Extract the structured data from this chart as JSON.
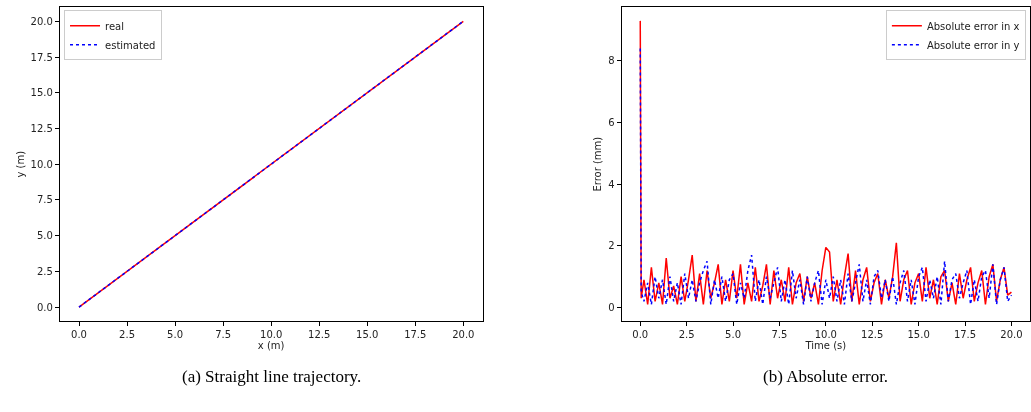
{
  "chart_data": [
    {
      "type": "line",
      "xlabel": "x (m)",
      "ylabel": "y (m)",
      "x": [
        0,
        20
      ],
      "legend": "top left",
      "xlim": [
        -1,
        21
      ],
      "ylim": [
        -1,
        21
      ],
      "xticks": [
        {
          "value": 0,
          "label": "0.0"
        },
        2.5,
        {
          "value": 5,
          "label": "5.0"
        },
        7.5,
        {
          "value": 10,
          "label": "10.0"
        },
        12.5,
        {
          "value": 15,
          "label": "15.0"
        },
        17.5,
        {
          "value": 20,
          "label": "20.0"
        }
      ],
      "yticks": [
        {
          "value": 0,
          "label": "0.0"
        },
        2.5,
        {
          "value": 5,
          "label": "5.0"
        },
        7.5,
        {
          "value": 10,
          "label": "10.0"
        },
        12.5,
        {
          "value": 15,
          "label": "15.0"
        },
        17.5,
        {
          "value": 20,
          "label": "20.0"
        }
      ],
      "series": [
        {
          "name": "real",
          "color": "#ff0000",
          "line_style": "solid",
          "values": [
            0,
            20
          ]
        },
        {
          "name": "estimated",
          "color": "#0000ff",
          "line_style": "dotted",
          "values": [
            0,
            20
          ]
        }
      ],
      "annotations": [
        "(a) Straight line trajectory."
      ]
    },
    {
      "type": "line",
      "xlabel": "Time (s)",
      "ylabel": "Error (mm)",
      "legend": "top right",
      "x": [
        0,
        0.05,
        0.2,
        0.4,
        0.6,
        0.8,
        1.0,
        1.2,
        1.4,
        1.6,
        1.8,
        2.0,
        2.2,
        2.4,
        2.6,
        2.8,
        3.0,
        3.2,
        3.4,
        3.6,
        3.8,
        4.0,
        4.2,
        4.4,
        4.6,
        4.8,
        5.0,
        5.2,
        5.4,
        5.6,
        5.8,
        6.0,
        6.2,
        6.4,
        6.6,
        6.8,
        7.0,
        7.2,
        7.4,
        7.6,
        7.8,
        8.0,
        8.2,
        8.4,
        8.6,
        8.8,
        9.0,
        9.2,
        9.4,
        9.6,
        9.8,
        10.0,
        10.2,
        10.4,
        10.6,
        10.8,
        11.0,
        11.2,
        11.4,
        11.6,
        11.8,
        12.0,
        12.2,
        12.4,
        12.6,
        12.8,
        13.0,
        13.2,
        13.4,
        13.6,
        13.8,
        14.0,
        14.2,
        14.4,
        14.6,
        14.8,
        15.0,
        15.2,
        15.4,
        15.6,
        15.8,
        16.0,
        16.2,
        16.4,
        16.6,
        16.8,
        17.0,
        17.2,
        17.4,
        17.6,
        17.8,
        18.0,
        18.2,
        18.4,
        18.6,
        18.8,
        19.0,
        19.2,
        19.4,
        19.6,
        19.8,
        20.0
      ],
      "xlim": [
        -1,
        21
      ],
      "ylim": [
        -0.45,
        9.75
      ],
      "xticks": [
        {
          "value": 0,
          "label": "0.0"
        },
        2.5,
        {
          "value": 5,
          "label": "5.0"
        },
        7.5,
        {
          "value": 10,
          "label": "10.0"
        },
        12.5,
        {
          "value": 15,
          "label": "15.0"
        },
        17.5,
        {
          "value": 20,
          "label": "20.0"
        }
      ],
      "yticks": [
        0,
        2,
        4,
        6,
        8
      ],
      "series": [
        {
          "name": "Absolute error in x",
          "color": "#ff0000",
          "line_style": "solid",
          "values": [
            9.3,
            0.3,
            0.9,
            0.1,
            1.3,
            0.2,
            0.8,
            0.1,
            1.6,
            0.3,
            0.7,
            0.1,
            1.0,
            0.2,
            0.9,
            1.7,
            0.2,
            1.1,
            0.1,
            1.2,
            0.3,
            0.8,
            1.4,
            0.1,
            0.9,
            0.2,
            1.2,
            0.3,
            1.4,
            0.1,
            0.8,
            0.2,
            1.3,
            0.2,
            0.7,
            1.4,
            0.1,
            1.2,
            0.3,
            0.9,
            0.2,
            1.3,
            0.1,
            0.8,
            1.1,
            0.2,
            1.0,
            0.3,
            0.8,
            0.1,
            1.2,
            1.95,
            1.8,
            0.2,
            0.9,
            0.1,
            1.0,
            1.75,
            0.2,
            1.2,
            0.1,
            0.9,
            1.3,
            0.2,
            0.8,
            1.1,
            0.1,
            0.9,
            0.3,
            1.0,
            2.1,
            0.2,
            0.9,
            1.2,
            0.1,
            0.8,
            1.1,
            0.2,
            1.3,
            0.3,
            0.9,
            0.1,
            1.0,
            1.2,
            0.2,
            0.8,
            0.1,
            1.1,
            0.3,
            0.9,
            1.3,
            0.2,
            0.8,
            1.2,
            0.1,
            1.0,
            1.4,
            0.2,
            0.9,
            1.3,
            0.4,
            0.5
          ]
        },
        {
          "name": "Absolute error in y",
          "color": "#0000ff",
          "line_style": "dotted",
          "values": [
            8.4,
            0.5,
            0.2,
            0.8,
            0.1,
            1.0,
            0.3,
            0.9,
            0.1,
            1.0,
            0.2,
            0.8,
            0.1,
            1.1,
            0.3,
            0.9,
            0.2,
            0.8,
            1.2,
            1.5,
            0.1,
            0.9,
            0.3,
            1.0,
            0.2,
            0.9,
            1.1,
            0.1,
            0.8,
            0.3,
            1.2,
            1.7,
            0.2,
            0.9,
            0.1,
            1.0,
            0.3,
            0.8,
            1.3,
            0.2,
            0.9,
            0.1,
            1.2,
            0.3,
            0.9,
            0.1,
            1.0,
            0.2,
            0.8,
            1.2,
            0.1,
            0.9,
            0.3,
            1.0,
            0.2,
            0.9,
            0.1,
            1.1,
            0.2,
            0.8,
            1.4,
            0.2,
            0.9,
            0.1,
            1.0,
            1.2,
            0.3,
            0.9,
            0.2,
            1.0,
            0.1,
            0.8,
            1.2,
            0.2,
            0.9,
            0.1,
            1.0,
            1.3,
            0.2,
            0.9,
            0.3,
            1.0,
            0.1,
            1.5,
            0.2,
            0.9,
            1.1,
            0.3,
            0.8,
            1.2,
            0.1,
            0.9,
            0.2,
            1.0,
            1.2,
            0.3,
            1.4,
            0.1,
            0.9,
            1.3,
            0.2,
            0.4
          ]
        }
      ],
      "annotations": [
        "(b) Absolute error."
      ]
    }
  ]
}
